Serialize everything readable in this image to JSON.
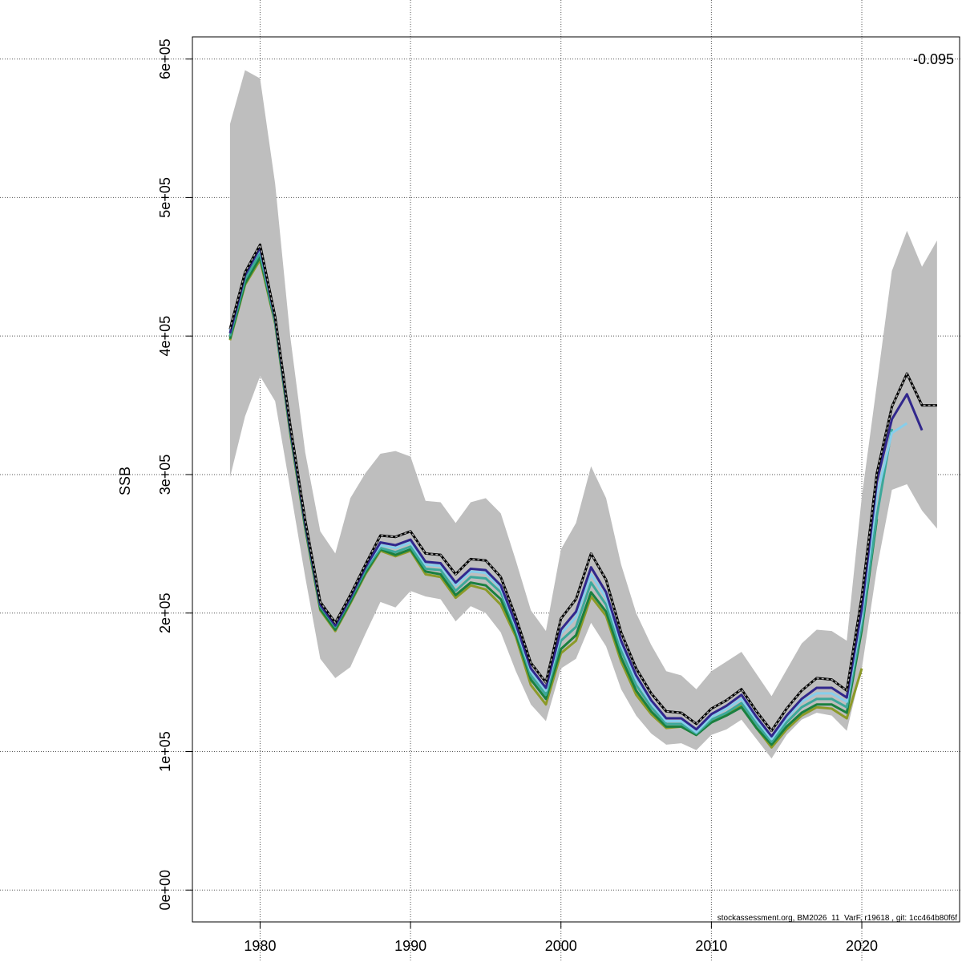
{
  "chart_data": {
    "type": "line",
    "title": "",
    "xlabel": "",
    "ylabel": "SSB",
    "annotation": "-0.095",
    "footer": "stockassessment.org, BM2026_11_VarF, r19618 , git: 1cc464b80f6f",
    "xlim": [
      1975.5,
      2026.5
    ],
    "ylim": [
      -23000,
      616000
    ],
    "x_ticks": [
      1980,
      1990,
      2000,
      2010,
      2020
    ],
    "x_tick_labels": [
      "1980",
      "1990",
      "2000",
      "2010",
      "2020"
    ],
    "y_ticks": [
      0,
      100000,
      200000,
      300000,
      400000,
      500000,
      600000
    ],
    "y_tick_labels": [
      "0e+00",
      "1e+05",
      "2e+05",
      "3e+05",
      "4e+05",
      "5e+05",
      "6e+05"
    ],
    "grid": true,
    "start_year": 1978,
    "band": {
      "color": "#bebebe",
      "upper": [
        553000,
        592000,
        586000,
        510000,
        400000,
        316000,
        259000,
        243000,
        283000,
        301000,
        315000,
        317000,
        313000,
        281000,
        280000,
        265000,
        280000,
        283000,
        272000,
        238000,
        202000,
        187000,
        246000,
        265000,
        306000,
        283000,
        235000,
        200000,
        177000,
        158000,
        155000,
        145000,
        158000,
        165000,
        172000,
        156000,
        140000,
        159000,
        178000,
        188000,
        187000,
        180000,
        284000,
        365000,
        447000,
        476000,
        450000,
        469000
      ],
      "lower": [
        298000,
        342000,
        371000,
        353000,
        290000,
        226000,
        167000,
        153000,
        161000,
        185000,
        208000,
        204000,
        216000,
        212000,
        210000,
        194000,
        205000,
        200000,
        186000,
        158000,
        134000,
        122000,
        160000,
        167000,
        193000,
        176000,
        145000,
        126000,
        113000,
        105000,
        106000,
        101000,
        112000,
        116000,
        123000,
        109000,
        95000,
        112000,
        123000,
        128000,
        126000,
        115000,
        160000,
        232000,
        289000,
        293000,
        274000,
        261000
      ]
    },
    "series": [
      {
        "color": "#000000",
        "dashed": true,
        "values": [
          405000,
          446000,
          466000,
          414000,
          336000,
          267000,
          208000,
          193000,
          213000,
          235000,
          256000,
          255000,
          259000,
          243000,
          242000,
          228000,
          239000,
          238000,
          226000,
          197000,
          164000,
          150000,
          196000,
          210000,
          243000,
          224000,
          186000,
          160000,
          142000,
          129000,
          128000,
          120000,
          131000,
          137000,
          145000,
          129000,
          115000,
          131000,
          144000,
          153000,
          152000,
          144000,
          212000,
          301000,
          349000,
          373000,
          350000,
          350000
        ]
      },
      {
        "color": "#31278c",
        "values": [
          402000,
          444000,
          464000,
          413000,
          334000,
          265000,
          206000,
          191000,
          211000,
          233000,
          251000,
          249000,
          253000,
          237000,
          236000,
          222000,
          232000,
          231000,
          220000,
          192000,
          160000,
          146000,
          188000,
          201000,
          233000,
          215000,
          180000,
          155000,
          137000,
          124000,
          124000,
          116000,
          127000,
          133000,
          141000,
          125000,
          111000,
          126000,
          138000,
          146000,
          146000,
          139000,
          203000,
          295000,
          340000,
          358000,
          332000
        ]
      },
      {
        "color": "#87ceeb",
        "values": [
          404000,
          445000,
          463000,
          413000,
          335000,
          266000,
          207000,
          192000,
          212000,
          233000,
          249000,
          247000,
          251000,
          235000,
          234000,
          220000,
          230000,
          229000,
          218000,
          190000,
          158000,
          144000,
          185000,
          197000,
          228000,
          211000,
          177000,
          152000,
          135000,
          122000,
          122000,
          114000,
          125000,
          131000,
          138000,
          123000,
          109000,
          124000,
          136000,
          142000,
          142000,
          136000,
          198000,
          285000,
          330000,
          337000
        ]
      },
      {
        "color": "#3ca89a",
        "values": [
          400000,
          441000,
          460000,
          411000,
          333000,
          264000,
          205000,
          190000,
          210000,
          231000,
          247000,
          244000,
          248000,
          232000,
          231000,
          216000,
          226000,
          225000,
          215000,
          188000,
          155000,
          141000,
          180000,
          190000,
          222000,
          206000,
          173000,
          148000,
          132000,
          120000,
          120000,
          113000,
          123000,
          128000,
          135000,
          120000,
          107000,
          121000,
          132000,
          138000,
          138000,
          132000,
          192000,
          270000,
          333000
        ]
      },
      {
        "color": "#1a8040",
        "values": [
          398000,
          438000,
          457000,
          410000,
          331000,
          262000,
          203000,
          188000,
          208000,
          229000,
          246000,
          242000,
          246000,
          230000,
          228000,
          213000,
          222000,
          220000,
          210000,
          185000,
          152000,
          138000,
          174000,
          184000,
          215000,
          201000,
          168000,
          144000,
          129000,
          118000,
          118000,
          112000,
          121000,
          126000,
          132000,
          117000,
          105000,
          118000,
          128000,
          134000,
          134000,
          128000,
          188000,
          268000
        ]
      },
      {
        "color": "#8c9a28",
        "values": [
          397000,
          437000,
          455000,
          409000,
          330000,
          261000,
          202000,
          187000,
          207000,
          228000,
          245000,
          241000,
          245000,
          228000,
          226000,
          211000,
          220000,
          217000,
          206000,
          183000,
          148000,
          134000,
          171000,
          180000,
          212000,
          198000,
          165000,
          141000,
          127000,
          117000,
          118000,
          112000,
          122000,
          127000,
          133000,
          117000,
          103000,
          116000,
          126000,
          132000,
          131000,
          124000,
          160000
        ]
      }
    ]
  }
}
